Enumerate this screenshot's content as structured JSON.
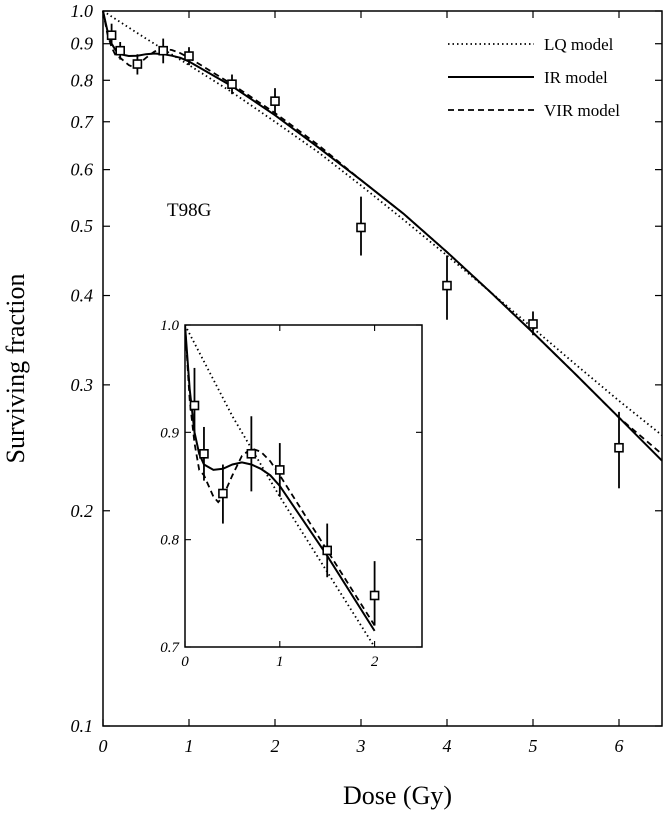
{
  "chart_data": {
    "type": "line",
    "xlabel": "Dose (Gy)",
    "ylabel": "Surviving fraction",
    "annotation": "T98G",
    "yscale": "log",
    "xlim": [
      0,
      6.5
    ],
    "ylim": [
      0.1,
      1.0
    ],
    "x_ticks": [
      0,
      1,
      2,
      3,
      4,
      5,
      6
    ],
    "y_ticks": [
      0.1,
      0.2,
      0.3,
      0.4,
      0.5,
      0.6,
      0.7,
      0.8,
      0.9,
      1.0
    ],
    "y_tick_labels": [
      "0.1",
      "0.2",
      "0.3",
      "0.4",
      "0.5",
      "0.6",
      "0.7",
      "0.8",
      "0.9",
      "1.0"
    ],
    "legend_position": "top-right",
    "series": [
      {
        "name": "LQ model",
        "style": "dotted",
        "x": [
          0,
          0.5,
          1,
          1.5,
          2,
          2.5,
          3,
          3.5,
          4,
          4.5,
          5,
          5.5,
          6,
          6.5
        ],
        "y": [
          1.0,
          0.915,
          0.84,
          0.77,
          0.7,
          0.635,
          0.57,
          0.51,
          0.455,
          0.405,
          0.36,
          0.32,
          0.285,
          0.255
        ]
      },
      {
        "name": "IR model",
        "style": "solid",
        "x": [
          0,
          0.05,
          0.1,
          0.15,
          0.2,
          0.3,
          0.4,
          0.5,
          0.6,
          0.7,
          0.8,
          0.9,
          1,
          1.5,
          2,
          2.5,
          3,
          3.5,
          4,
          4.5,
          5,
          5.5,
          6,
          6.5
        ],
        "y": [
          1.0,
          0.94,
          0.9,
          0.88,
          0.87,
          0.865,
          0.866,
          0.87,
          0.872,
          0.87,
          0.866,
          0.86,
          0.85,
          0.785,
          0.715,
          0.645,
          0.58,
          0.52,
          0.46,
          0.405,
          0.355,
          0.31,
          0.27,
          0.235
        ]
      },
      {
        "name": "VIR model",
        "style": "dashed",
        "x": [
          0,
          0.05,
          0.1,
          0.15,
          0.2,
          0.25,
          0.3,
          0.35,
          0.4,
          0.5,
          0.6,
          0.7,
          0.8,
          0.9,
          1,
          1.5,
          2,
          2.5,
          3,
          3.5,
          4,
          4.5,
          5,
          5.5,
          6,
          6.5
        ],
        "y": [
          1.0,
          0.93,
          0.89,
          0.865,
          0.86,
          0.85,
          0.84,
          0.835,
          0.84,
          0.86,
          0.878,
          0.885,
          0.882,
          0.873,
          0.86,
          0.79,
          0.72,
          0.65,
          0.58,
          0.52,
          0.46,
          0.405,
          0.355,
          0.31,
          0.27,
          0.24
        ]
      },
      {
        "name": "data",
        "style": "markers",
        "x": [
          0.1,
          0.2,
          0.4,
          0.7,
          1.0,
          1.5,
          2.0,
          3.0,
          4.0,
          5.0,
          6.0
        ],
        "y": [
          0.925,
          0.88,
          0.843,
          0.88,
          0.865,
          0.79,
          0.748,
          0.498,
          0.413,
          0.365,
          0.245
        ],
        "y_err_low": [
          0.895,
          0.855,
          0.815,
          0.845,
          0.84,
          0.765,
          0.72,
          0.455,
          0.37,
          0.352,
          0.215
        ],
        "y_err_high": [
          0.96,
          0.905,
          0.87,
          0.915,
          0.89,
          0.815,
          0.78,
          0.55,
          0.455,
          0.38,
          0.275
        ]
      }
    ],
    "inset": {
      "xlim": [
        0,
        2.5
      ],
      "ylim": [
        0.7,
        1.0
      ],
      "x_ticks": [
        0,
        1,
        2
      ],
      "y_ticks": [
        0.7,
        0.8,
        0.9,
        1.0
      ],
      "y_tick_labels": [
        "0.7",
        "0.8",
        "0.9",
        "1.0"
      ],
      "x_range_plotted": [
        0,
        2.4
      ]
    }
  }
}
